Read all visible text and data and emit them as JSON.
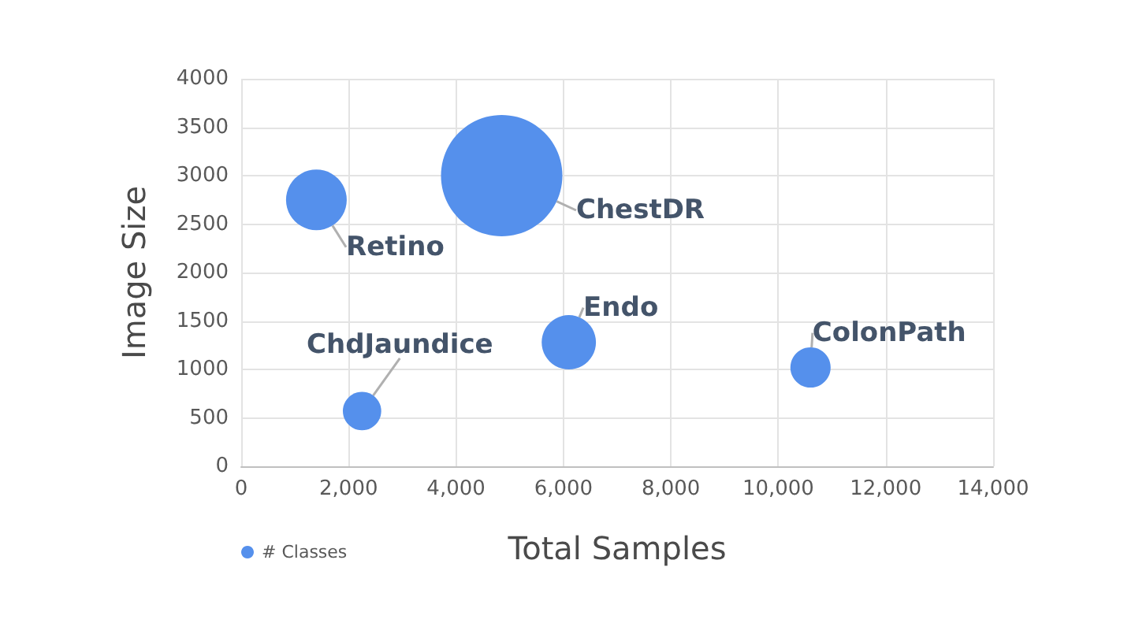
{
  "chart_data": {
    "type": "bubble",
    "xlabel": "Total Samples",
    "ylabel": "Image Size",
    "x": [
      1400,
      4850,
      6100,
      10600,
      2250
    ],
    "series": [
      {
        "name": "# Classes",
        "color": "#5590ec",
        "values": [
          2750,
          3000,
          1280,
          1020,
          570
        ],
        "sizes": [
          0.25,
          1,
          0.2,
          0.11,
          0.1
        ]
      }
    ],
    "annotations": [
      {
        "text": "Retino",
        "x": 1400,
        "y": 2750
      },
      {
        "text": "ChestDR",
        "x": 4850,
        "y": 3000
      },
      {
        "text": "Endo",
        "x": 6100,
        "y": 1280
      },
      {
        "text": "ColonPath",
        "x": 10600,
        "y": 1020
      },
      {
        "text": "ChdJaundice",
        "x": 2250,
        "y": 570
      }
    ],
    "xlim": [
      0,
      14000
    ],
    "xticks": [
      0,
      {
        "value": 2000,
        "label": "2,000"
      },
      {
        "value": 4000,
        "label": "4,000"
      },
      {
        "value": 6000,
        "label": "6,000"
      },
      {
        "value": 8000,
        "label": "8,000"
      },
      {
        "value": 10000,
        "label": "10,000"
      },
      {
        "value": 12000,
        "label": "12,000"
      },
      {
        "value": 14000,
        "label": "14,000"
      }
    ],
    "ylim": [
      0,
      4000
    ],
    "yticks": [
      0,
      500,
      1000,
      1500,
      2000,
      2500,
      3000,
      3500,
      4000
    ],
    "grid": true,
    "legend": "bottom left"
  }
}
